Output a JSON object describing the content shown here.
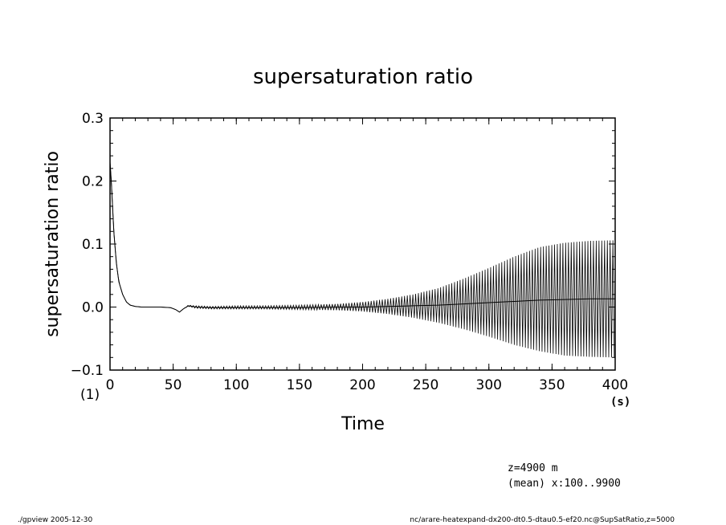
{
  "chart_data": {
    "type": "line",
    "title": "supersaturation ratio",
    "xlabel": "Time",
    "ylabel": "supersaturation ratio",
    "x_unit": "(s)",
    "y_unit": "(1)",
    "xlim": [
      0,
      400
    ],
    "ylim": [
      -0.1,
      0.3
    ],
    "x_ticks": [
      "0",
      "50",
      "100",
      "150",
      "200",
      "250",
      "300",
      "350",
      "400"
    ],
    "y_ticks": [
      "0.3",
      "0.2",
      "0.1",
      "0.0",
      "−0.1"
    ],
    "grid": false,
    "series": [
      {
        "x": [
          0,
          1,
          2,
          3,
          5,
          7,
          10,
          13,
          16,
          20,
          25,
          30,
          40,
          48,
          52,
          55,
          58,
          62,
          68,
          80,
          100,
          120,
          150,
          180,
          200,
          220,
          240,
          260,
          280,
          300,
          320,
          340,
          360,
          380,
          400
        ],
        "y_upper": [
          0.23,
          0.2,
          0.16,
          0.12,
          0.07,
          0.04,
          0.02,
          0.008,
          0.003,
          0.001,
          0.0,
          0.0,
          0.0,
          -0.001,
          -0.004,
          -0.008,
          -0.003,
          0.003,
          0.002,
          0.001,
          0.002,
          0.002,
          0.003,
          0.005,
          0.008,
          0.013,
          0.02,
          0.03,
          0.045,
          0.062,
          0.08,
          0.095,
          0.102,
          0.105,
          0.106
        ],
        "y_lower": [
          0.23,
          0.2,
          0.16,
          0.12,
          0.07,
          0.04,
          0.02,
          0.008,
          0.003,
          0.001,
          0.0,
          0.0,
          0.0,
          -0.001,
          -0.004,
          -0.008,
          -0.003,
          0.001,
          -0.002,
          -0.003,
          -0.003,
          -0.003,
          -0.004,
          -0.005,
          -0.007,
          -0.011,
          -0.017,
          -0.025,
          -0.035,
          -0.047,
          -0.06,
          -0.07,
          -0.077,
          -0.079,
          -0.08
        ],
        "y_mean": [
          0.23,
          0.2,
          0.16,
          0.12,
          0.07,
          0.04,
          0.02,
          0.008,
          0.003,
          0.001,
          0.0,
          0.0,
          0.0,
          -0.001,
          -0.004,
          -0.008,
          -0.003,
          0.002,
          0.0,
          -0.001,
          -0.001,
          -0.001,
          -0.001,
          0.0,
          0.0,
          0.001,
          0.002,
          0.003,
          0.005,
          0.007,
          0.009,
          0.011,
          0.012,
          0.013,
          0.013
        ]
      }
    ]
  },
  "annotations": {
    "z_level": "z=4900  m",
    "mean_info": "(mean) x:100..9900"
  },
  "footer": {
    "left": "./gpview   2005-12-30",
    "right": "nc/arare-heatexpand-dx200-dt0.5-dtau0.5-ef20.nc@SupSatRatio,z=5000"
  }
}
